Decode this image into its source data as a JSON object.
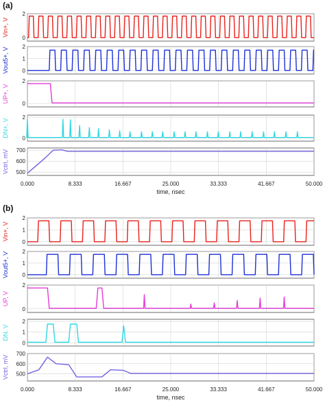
{
  "colors": {
    "vin": "#e8201a",
    "vout": "#1a2fd6",
    "up": "#e33bd8",
    "dn": "#2fd8e3",
    "vctrl": "#7063e0",
    "grid": "#c9c9c9",
    "axis": "#444444"
  },
  "chart_data": [
    {
      "type": "line",
      "panel_label": "(a)",
      "xlabel": "time, nsec",
      "xlim": [
        0,
        50
      ],
      "xticks": [
        "0.000",
        "8.333",
        "16.667",
        "25.000",
        "33.333",
        "41.667",
        "50.000"
      ],
      "rows": [
        {
          "name": "Vin+, V",
          "color": "vin",
          "ylim": [
            -0.3,
            2
          ],
          "yticks": [
            "2",
            "0"
          ],
          "kind": "square",
          "period": 1.667,
          "duty": 0.5,
          "start": 0.2,
          "low": 0,
          "high": 1.8
        },
        {
          "name": "Vout5+, V",
          "color": "vout",
          "ylim": [
            -0.3,
            2
          ],
          "yticks": [
            "2",
            "1",
            "0"
          ],
          "kind": "square",
          "period": 2.0,
          "duty": 0.5,
          "start": 3.8,
          "low": 0,
          "high": 1.7
        },
        {
          "name": "UP+, V",
          "color": "up",
          "ylim": [
            -0.3,
            2
          ],
          "yticks": [
            "2",
            "0"
          ],
          "kind": "poly",
          "points": [
            [
              0,
              1.75
            ],
            [
              4.0,
              1.75
            ],
            [
              4.3,
              0.05
            ],
            [
              50,
              0.05
            ]
          ]
        },
        {
          "name": "DN+, V",
          "color": "dn",
          "ylim": [
            -0.3,
            2.2
          ],
          "yticks": [
            "2",
            "0"
          ],
          "kind": "spikes",
          "base": 0.05,
          "spikes": [
            [
              0.0,
              1.8
            ],
            [
              6.2,
              1.8
            ],
            [
              7.5,
              1.75
            ],
            [
              9.1,
              1.2
            ],
            [
              10.8,
              1.0
            ],
            [
              12.4,
              0.9
            ],
            [
              14.3,
              0.8
            ],
            [
              16.1,
              0.7
            ],
            [
              17.9,
              0.6
            ],
            [
              19.9,
              0.6
            ],
            [
              21.8,
              0.6
            ],
            [
              23.6,
              0.6
            ],
            [
              25.6,
              0.6
            ],
            [
              27.5,
              0.6
            ],
            [
              29.4,
              0.6
            ],
            [
              31.4,
              0.6
            ],
            [
              33.3,
              0.6
            ],
            [
              35.3,
              0.6
            ],
            [
              37.2,
              0.6
            ],
            [
              39.2,
              0.6
            ],
            [
              41.2,
              0.6
            ],
            [
              43.1,
              0.6
            ],
            [
              45.1,
              0.6
            ],
            [
              47.1,
              0.6
            ]
          ]
        },
        {
          "name": "Vctrl, mV",
          "color": "vctrl",
          "ylim": [
            470,
            720
          ],
          "yticks": [
            "700",
            "600",
            "500"
          ],
          "kind": "poly",
          "points": [
            [
              0,
              490
            ],
            [
              3.0,
              625
            ],
            [
              4.5,
              700
            ],
            [
              6.0,
              703
            ],
            [
              7.0,
              690
            ],
            [
              50,
              690
            ]
          ]
        }
      ]
    },
    {
      "type": "line",
      "panel_label": "(b)",
      "xlabel": "time, nsec",
      "xlim": [
        0,
        50
      ],
      "xticks": [
        "0.000",
        "8.333",
        "16.667",
        "25.000",
        "33.333",
        "41.667",
        "50.000"
      ],
      "rows": [
        {
          "name": "Vin+, V",
          "color": "vin",
          "ylim": [
            -0.3,
            2
          ],
          "yticks": [
            "2",
            "1",
            "0"
          ],
          "kind": "square",
          "period": 3.9,
          "duty": 0.5,
          "start": 1.8,
          "low": 0,
          "high": 1.75
        },
        {
          "name": "Vout5+, V",
          "color": "vout",
          "ylim": [
            -0.3,
            2
          ],
          "yticks": [
            "2",
            "1",
            "0"
          ],
          "kind": "square",
          "period": 4.05,
          "duty": 0.5,
          "start": 3.3,
          "low": 0,
          "high": 1.75
        },
        {
          "name": "UP, V",
          "color": "up",
          "ylim": [
            -0.3,
            2
          ],
          "yticks": [
            "2",
            "0"
          ],
          "kind": "mixed",
          "base": 0.05,
          "points": [
            [
              0,
              1.75
            ],
            [
              3.5,
              1.75
            ],
            [
              3.8,
              0.05
            ],
            [
              12.0,
              0.05
            ],
            [
              12.3,
              1.75
            ],
            [
              13.0,
              1.75
            ],
            [
              13.3,
              0.05
            ],
            [
              50,
              0.05
            ]
          ],
          "spikes": [
            [
              20.4,
              1.2
            ],
            [
              28.5,
              0.4
            ],
            [
              32.6,
              0.5
            ],
            [
              36.6,
              0.7
            ],
            [
              40.6,
              0.9
            ],
            [
              44.8,
              1.0
            ]
          ]
        },
        {
          "name": "DN, V",
          "color": "dn",
          "ylim": [
            -0.3,
            2.2
          ],
          "yticks": [
            "2",
            "1",
            "0"
          ],
          "kind": "poly",
          "points": [
            [
              0,
              0.05
            ],
            [
              3.2,
              0.05
            ],
            [
              3.5,
              1.75
            ],
            [
              4.5,
              1.75
            ],
            [
              4.8,
              0.05
            ],
            [
              7.2,
              0.05
            ],
            [
              7.5,
              1.75
            ],
            [
              8.6,
              1.75
            ],
            [
              8.9,
              0.05
            ],
            [
              16.5,
              0.05
            ],
            [
              16.8,
              1.6
            ],
            [
              17.1,
              0.05
            ],
            [
              50,
              0.05
            ]
          ]
        },
        {
          "name": "Vctrl, mV",
          "color": "vctrl",
          "ylim": [
            430,
            700
          ],
          "yticks": [
            "700",
            "600",
            "500"
          ],
          "kind": "poly",
          "points": [
            [
              0,
              500
            ],
            [
              2.0,
              540
            ],
            [
              3.5,
              665
            ],
            [
              5.0,
              600
            ],
            [
              7.2,
              590
            ],
            [
              8.6,
              470
            ],
            [
              13.0,
              470
            ],
            [
              14.5,
              540
            ],
            [
              16.7,
              535
            ],
            [
              18.0,
              505
            ],
            [
              50,
              505
            ]
          ]
        }
      ]
    }
  ]
}
